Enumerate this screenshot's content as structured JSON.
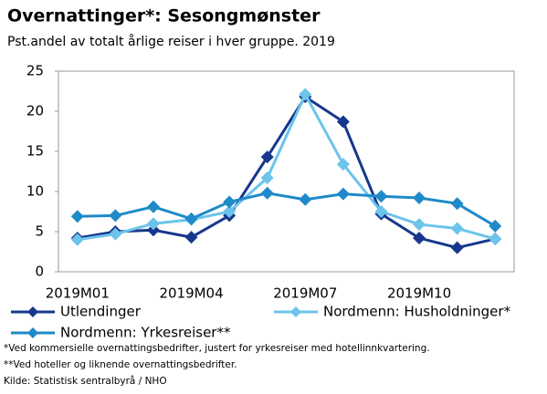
{
  "chart_data": {
    "type": "line",
    "title": "Overnattinger*: Sesongmønster",
    "subtitle": "Pst.andel av totalt årlige reiser i hver gruppe. 2019",
    "categories": [
      "2019M01",
      null,
      null,
      "2019M04",
      null,
      null,
      "2019M07",
      null,
      null,
      "2019M10",
      null,
      null
    ],
    "series": [
      {
        "name": "Utlendinger",
        "color": "#17378c",
        "values": [
          4.2,
          5.0,
          5.2,
          4.3,
          7.0,
          14.3,
          21.8,
          18.7,
          7.2,
          4.2,
          3.0,
          4.1
        ]
      },
      {
        "name": "Nordmenn: Husholdninger*",
        "color": "#6cc4ea",
        "values": [
          4.0,
          4.7,
          6.0,
          6.5,
          7.5,
          11.7,
          22.1,
          13.4,
          7.5,
          5.9,
          5.4,
          4.1
        ]
      },
      {
        "name": "Nordmenn: Yrkesreiser**",
        "color": "#1f8ac9",
        "values": [
          6.9,
          7.0,
          8.1,
          6.6,
          8.7,
          9.8,
          9.0,
          9.7,
          9.4,
          9.2,
          8.5,
          5.7
        ]
      }
    ],
    "ylim": [
      0,
      25
    ],
    "yticks": [
      0,
      5,
      10,
      15,
      20,
      25
    ],
    "grid": false,
    "notes": [
      "*Ved kommersielle overnattingsbedrifter, justert for yrkesreiser med hotellinnkvartering.",
      "**Ved hoteller og liknende overnattingsbedrifter."
    ],
    "source": "Kilde: Statistisk sentralbyrå / NHO"
  }
}
